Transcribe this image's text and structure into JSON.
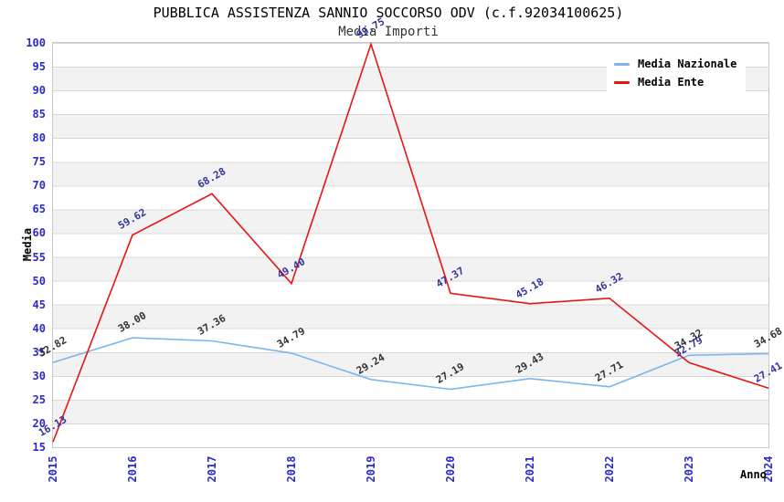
{
  "title": "PUBBLICA ASSISTENZA SANNIO SOCCORSO ODV (c.f.92034100625)",
  "subtitle": "Media Importi",
  "chart_data": {
    "type": "line",
    "x": [
      2015,
      2016,
      2017,
      2018,
      2019,
      2020,
      2021,
      2022,
      2023,
      2024
    ],
    "xlabel": "Anno",
    "ylabel": "Media",
    "ylim": [
      15,
      100
    ],
    "ytick_step": 5,
    "grid": "horizontal-bands-alternating",
    "legend_position": "top-right",
    "series": [
      {
        "name": "Media Nazionale",
        "color": "#7cb5ec",
        "label_color": "#333333",
        "values": [
          32.82,
          38.0,
          37.36,
          34.79,
          29.24,
          27.19,
          29.43,
          27.71,
          34.32,
          34.68
        ]
      },
      {
        "name": "Media Ente",
        "color": "#e81414",
        "label_color": "#34349e",
        "values": [
          16.13,
          59.62,
          68.28,
          49.4,
          99.75,
          47.37,
          45.18,
          46.32,
          32.79,
          27.41
        ]
      }
    ]
  },
  "colors": {
    "tick_label": "#2929cf",
    "band_fill": "#f2f2f2",
    "grid_line": "#d8d8d8",
    "plot_border": "#c8c8c8",
    "title_text": "#000000",
    "subtitle_text": "#333333"
  }
}
